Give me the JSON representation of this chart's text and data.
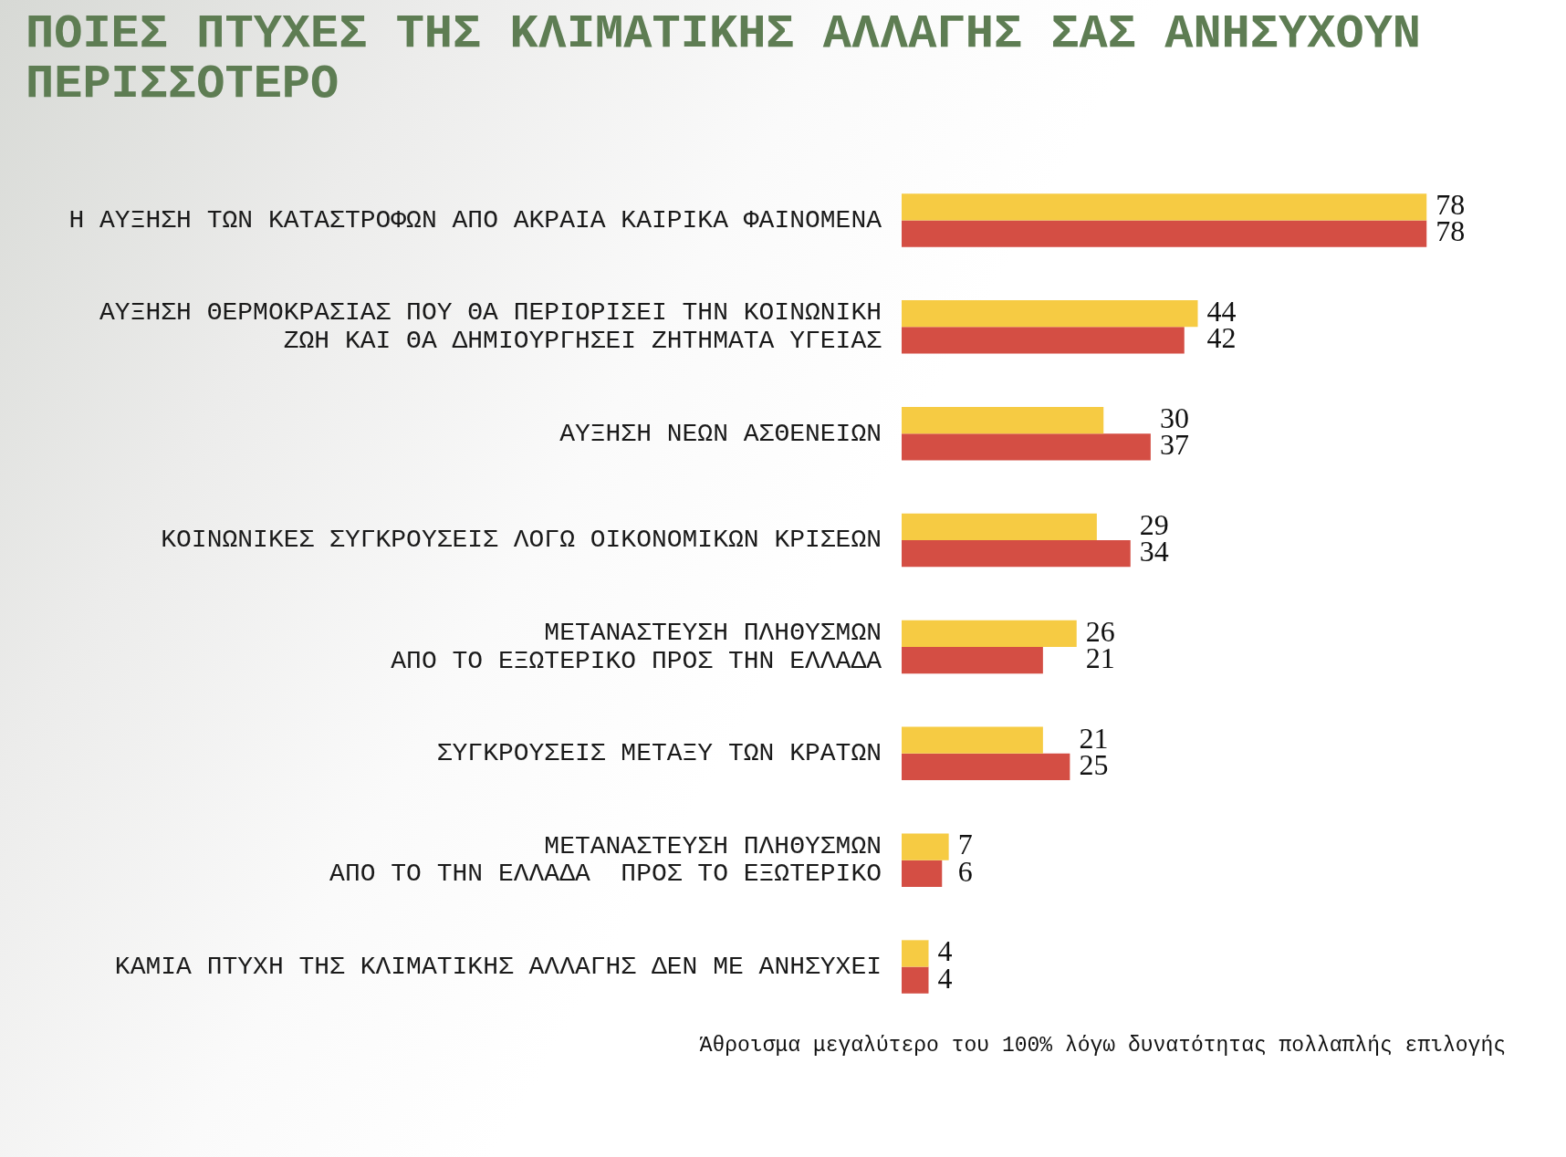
{
  "chart_data": {
    "type": "bar",
    "orientation": "horizontal",
    "title": "ΠΟΙΕΣ ΠΤΥΧΕΣ ΤΗΣ ΚΛΙΜΑΤΙΚΗΣ ΑΛΛΑΓΗΣ ΣΑΣ ΑΝΗΣΥΧΟΥΝ ΠΕΡΙΣΣΟΤΕΡΟ",
    "categories": [
      "Η ΑΥΞΗΣΗ ΤΩΝ ΚΑΤΑΣΤΡΟΦΩΝ ΑΠΟ ΑΚΡΑΙΑ ΚΑΙΡΙΚΑ ΦΑΙΝΟΜΕΝΑ",
      "ΑΥΞΗΣΗ ΘΕΡΜΟΚΡΑΣΙΑΣ ΠΟΥ ΘΑ ΠΕΡΙΟΡΙΣΕΙ ΤΗΝ ΚΟΙΝΩΝΙΚΗ\nΖΩΗ ΚΑΙ ΘΑ ΔΗΜΙΟΥΡΓΗΣΕΙ ΖΗΤΗΜΑΤΑ ΥΓΕΙΑΣ",
      "ΑΥΞΗΣΗ ΝΕΩΝ ΑΣΘΕΝΕΙΩΝ",
      "ΚΟΙΝΩΝΙΚΕΣ ΣΥΓΚΡΟΥΣΕΙΣ ΛΟΓΩ ΟΙΚΟΝΟΜΙΚΩΝ ΚΡΙΣΕΩΝ",
      "ΜΕΤΑΝΑΣΤΕΥΣΗ ΠΛΗΘΥΣΜΩΝ\nΑΠΟ ΤΟ ΕΞΩΤΕΡΙΚΟ ΠΡΟΣ ΤΗΝ ΕΛΛΑΔΑ",
      "ΣΥΓΚΡΟΥΣΕΙΣ ΜΕΤΑΞΥ ΤΩΝ ΚΡΑΤΩΝ",
      "ΜΕΤΑΝΑΣΤΕΥΣΗ ΠΛΗΘΥΣΜΩΝ\nΑΠΟ ΤΟ ΤΗΝ ΕΛΛΑΔΑ  ΠΡΟΣ ΤΟ ΕΞΩΤΕΡΙΚΟ",
      "ΚΑΜΙΑ ΠΤΥΧΗ ΤΗΣ ΚΛΙΜΑΤΙΚΗΣ ΑΛΛΑΓΗΣ ΔΕΝ ΜΕ ΑΝΗΣΥΧΕΙ"
    ],
    "series": [
      {
        "color": "#f6cb43",
        "values": [
          78,
          44,
          30,
          29,
          26,
          21,
          7,
          4
        ]
      },
      {
        "color": "#d44e44",
        "values": [
          78,
          42,
          37,
          34,
          21,
          25,
          6,
          4
        ]
      }
    ],
    "data_labels": true,
    "tick_labels": "y",
    "annotations": [
      "Άθροισμα μεγαλύτερο του 100% λόγω δυνατότητας πολλαπλής επιλογής"
    ]
  }
}
